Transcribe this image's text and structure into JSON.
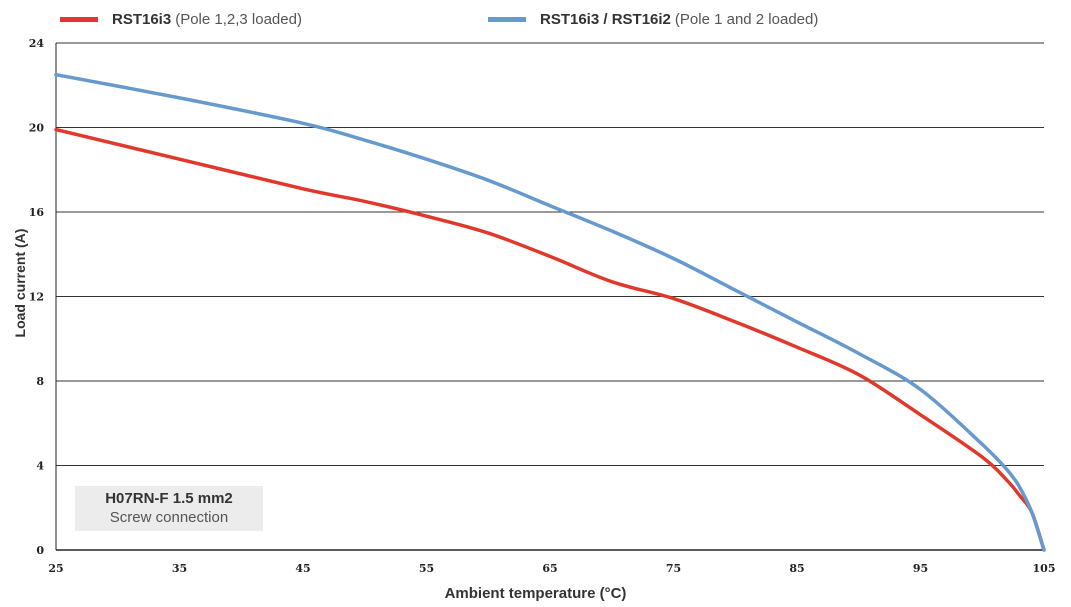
{
  "chart_data": {
    "type": "line",
    "xlabel": "Ambient temperature (°C)",
    "ylabel": "Load current (A)",
    "xlim": [
      25,
      105
    ],
    "ylim": [
      0,
      24
    ],
    "xticks": [
      "25",
      "35",
      "45",
      "55",
      "65",
      "75",
      "85",
      "95",
      "105"
    ],
    "yticks": [
      "0",
      "4",
      "8",
      "12",
      "16",
      "20",
      "24"
    ],
    "grid": "horizontal",
    "legend_placement": "top",
    "series": [
      {
        "name": "RST16i3",
        "note": "(Pole 1,2,3 loaded)",
        "color": "#e0392b",
        "x": [
          25,
          35,
          45,
          50,
          55,
          60,
          65,
          70,
          75,
          80,
          85,
          90,
          95,
          100,
          102,
          103,
          104,
          105
        ],
        "y": [
          19.9,
          18.5,
          17.1,
          16.5,
          15.8,
          15.0,
          13.9,
          12.7,
          11.9,
          10.8,
          9.6,
          8.3,
          6.4,
          4.4,
          3.3,
          2.6,
          1.8,
          0
        ]
      },
      {
        "name": "RST16i3 / RST16i2",
        "note": "(Pole 1 and 2 loaded)",
        "color": "#6699cc",
        "x": [
          25,
          35,
          45,
          50,
          55,
          60,
          65,
          70,
          75,
          80,
          85,
          90,
          95,
          100,
          102,
          103,
          104,
          105
        ],
        "y": [
          22.5,
          21.4,
          20.2,
          19.4,
          18.5,
          17.5,
          16.3,
          15.1,
          13.8,
          12.3,
          10.8,
          9.3,
          7.6,
          5.0,
          3.8,
          3.0,
          1.8,
          0
        ]
      }
    ],
    "annotation": {
      "line1": "H07RN-F 1.5 mm2",
      "line2": "Screw connection"
    }
  }
}
